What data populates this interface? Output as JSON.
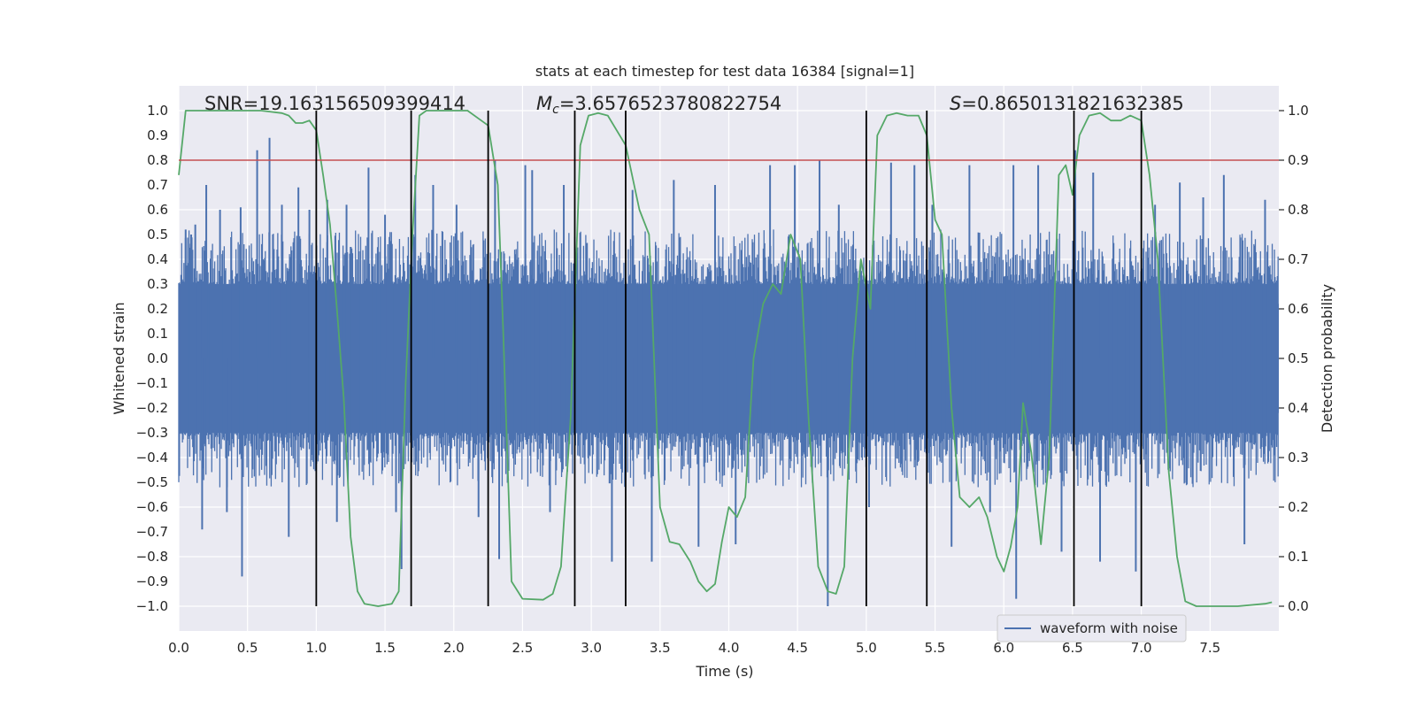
{
  "chart_data": {
    "type": "line",
    "title": "stats at each timestep for test data 16384 [signal=1]",
    "xlabel": "Time (s)",
    "ylabel_left": "Whitened strain",
    "ylabel_right": "Detection probability",
    "xlim": [
      0.0,
      8.0
    ],
    "ylim_left": [
      -1.1,
      1.1
    ],
    "ylim_right": [
      -0.05,
      1.05
    ],
    "x_ticks": [
      "0.0",
      "0.5",
      "1.0",
      "1.5",
      "2.0",
      "2.5",
      "3.0",
      "3.5",
      "4.0",
      "4.5",
      "5.0",
      "5.5",
      "6.0",
      "6.5",
      "7.0",
      "7.5"
    ],
    "y_ticks_left": [
      "1.0",
      "0.9",
      "0.8",
      "0.7",
      "0.6",
      "0.5",
      "0.4",
      "0.3",
      "0.2",
      "0.1",
      "0.0",
      "-0.1",
      "-0.2",
      "-0.3",
      "-0.4",
      "-0.5",
      "-0.6",
      "-0.7",
      "-0.8",
      "-0.9",
      "-1.0"
    ],
    "y_ticks_right": [
      "1.0",
      "0.9",
      "0.8",
      "0.7",
      "0.6",
      "0.5",
      "0.4",
      "0.3",
      "0.2",
      "0.1",
      "0.0"
    ],
    "annotations": {
      "snr": "SNR=19.163156509399414",
      "mc_symbol": "M",
      "mc_sub": "c",
      "mc_value": "=3.6576523780822754",
      "s_symbol": "S",
      "s_value": "=0.8650131821632385"
    },
    "threshold": 0.9,
    "vertical_lines": [
      1.0,
      1.69,
      2.25,
      2.88,
      3.25,
      5.0,
      5.44,
      6.51,
      7.0
    ],
    "waveform": {
      "name": "waveform with noise",
      "noise_band": [
        -0.4,
        0.4
      ],
      "peaks": [
        {
          "x": 0.05,
          "y": 0.52
        },
        {
          "x": 0.09,
          "y": 0.5
        },
        {
          "x": 0.12,
          "y": 0.54
        },
        {
          "x": 0.17,
          "y": -0.69
        },
        {
          "x": 0.2,
          "y": 0.7
        },
        {
          "x": 0.3,
          "y": 0.6
        },
        {
          "x": 0.35,
          "y": -0.62
        },
        {
          "x": 0.45,
          "y": 0.61
        },
        {
          "x": 0.46,
          "y": -0.88
        },
        {
          "x": 0.57,
          "y": 0.84
        },
        {
          "x": 0.66,
          "y": 0.89
        },
        {
          "x": 0.75,
          "y": 0.62
        },
        {
          "x": 0.8,
          "y": -0.72
        },
        {
          "x": 0.87,
          "y": 0.69
        },
        {
          "x": 0.95,
          "y": 0.6
        },
        {
          "x": 1.08,
          "y": 0.64
        },
        {
          "x": 1.15,
          "y": -0.66
        },
        {
          "x": 1.22,
          "y": 0.62
        },
        {
          "x": 1.38,
          "y": 0.77
        },
        {
          "x": 1.5,
          "y": 0.58
        },
        {
          "x": 1.58,
          "y": -0.62
        },
        {
          "x": 1.62,
          "y": -0.85
        },
        {
          "x": 1.72,
          "y": 0.74
        },
        {
          "x": 1.85,
          "y": 0.7
        },
        {
          "x": 2.02,
          "y": 0.62
        },
        {
          "x": 2.18,
          "y": -0.64
        },
        {
          "x": 2.3,
          "y": 0.8
        },
        {
          "x": 2.33,
          "y": -0.81
        },
        {
          "x": 2.52,
          "y": 0.78
        },
        {
          "x": 2.57,
          "y": 0.76
        },
        {
          "x": 2.7,
          "y": -0.62
        },
        {
          "x": 2.8,
          "y": 0.7
        },
        {
          "x": 3.15,
          "y": -0.82
        },
        {
          "x": 3.3,
          "y": 0.68
        },
        {
          "x": 3.44,
          "y": -0.82
        },
        {
          "x": 3.6,
          "y": 0.72
        },
        {
          "x": 3.78,
          "y": -0.76
        },
        {
          "x": 3.9,
          "y": 0.7
        },
        {
          "x": 4.05,
          "y": -0.75
        },
        {
          "x": 4.3,
          "y": 0.78
        },
        {
          "x": 4.48,
          "y": 0.78
        },
        {
          "x": 4.66,
          "y": 0.8
        },
        {
          "x": 4.72,
          "y": -1.0
        },
        {
          "x": 4.8,
          "y": 0.62
        },
        {
          "x": 5.02,
          "y": -0.6
        },
        {
          "x": 5.18,
          "y": 0.79
        },
        {
          "x": 5.35,
          "y": 0.78
        },
        {
          "x": 5.48,
          "y": 0.62
        },
        {
          "x": 5.62,
          "y": -0.76
        },
        {
          "x": 5.75,
          "y": 0.78
        },
        {
          "x": 5.9,
          "y": -0.62
        },
        {
          "x": 6.07,
          "y": 0.78
        },
        {
          "x": 6.09,
          "y": -0.97
        },
        {
          "x": 6.25,
          "y": 0.78
        },
        {
          "x": 6.42,
          "y": -0.78
        },
        {
          "x": 6.52,
          "y": 0.84
        },
        {
          "x": 6.65,
          "y": 0.75
        },
        {
          "x": 6.7,
          "y": -0.82
        },
        {
          "x": 6.96,
          "y": -0.86
        },
        {
          "x": 7.1,
          "y": 0.62
        },
        {
          "x": 7.28,
          "y": 0.71
        },
        {
          "x": 7.45,
          "y": 0.65
        },
        {
          "x": 7.6,
          "y": 0.74
        },
        {
          "x": 7.75,
          "y": -0.75
        },
        {
          "x": 7.9,
          "y": 0.64
        }
      ]
    },
    "probability": {
      "name": "detection probability",
      "points": [
        [
          0.0,
          0.87
        ],
        [
          0.05,
          1.0
        ],
        [
          0.1,
          1.0
        ],
        [
          0.2,
          1.0
        ],
        [
          0.4,
          1.0
        ],
        [
          0.6,
          1.0
        ],
        [
          0.75,
          0.995
        ],
        [
          0.8,
          0.99
        ],
        [
          0.85,
          0.975
        ],
        [
          0.9,
          0.975
        ],
        [
          0.95,
          0.98
        ],
        [
          1.0,
          0.96
        ],
        [
          1.05,
          0.87
        ],
        [
          1.1,
          0.77
        ],
        [
          1.15,
          0.6
        ],
        [
          1.2,
          0.42
        ],
        [
          1.25,
          0.14
        ],
        [
          1.3,
          0.03
        ],
        [
          1.35,
          0.005
        ],
        [
          1.45,
          0.0
        ],
        [
          1.55,
          0.005
        ],
        [
          1.6,
          0.03
        ],
        [
          1.65,
          0.45
        ],
        [
          1.7,
          0.75
        ],
        [
          1.75,
          0.99
        ],
        [
          1.8,
          1.0
        ],
        [
          1.9,
          1.0
        ],
        [
          2.1,
          1.0
        ],
        [
          2.2,
          0.98
        ],
        [
          2.25,
          0.97
        ],
        [
          2.32,
          0.85
        ],
        [
          2.36,
          0.55
        ],
        [
          2.42,
          0.05
        ],
        [
          2.5,
          0.015
        ],
        [
          2.65,
          0.013
        ],
        [
          2.72,
          0.025
        ],
        [
          2.78,
          0.08
        ],
        [
          2.85,
          0.38
        ],
        [
          2.92,
          0.93
        ],
        [
          2.98,
          0.99
        ],
        [
          3.05,
          0.995
        ],
        [
          3.12,
          0.99
        ],
        [
          3.25,
          0.93
        ],
        [
          3.35,
          0.8
        ],
        [
          3.42,
          0.75
        ],
        [
          3.5,
          0.2
        ],
        [
          3.57,
          0.13
        ],
        [
          3.64,
          0.125
        ],
        [
          3.72,
          0.09
        ],
        [
          3.78,
          0.05
        ],
        [
          3.84,
          0.03
        ],
        [
          3.9,
          0.045
        ],
        [
          3.95,
          0.13
        ],
        [
          4.0,
          0.2
        ],
        [
          4.06,
          0.18
        ],
        [
          4.12,
          0.22
        ],
        [
          4.18,
          0.5
        ],
        [
          4.25,
          0.61
        ],
        [
          4.32,
          0.65
        ],
        [
          4.38,
          0.63
        ],
        [
          4.45,
          0.75
        ],
        [
          4.52,
          0.7
        ],
        [
          4.58,
          0.38
        ],
        [
          4.65,
          0.08
        ],
        [
          4.72,
          0.03
        ],
        [
          4.78,
          0.025
        ],
        [
          4.84,
          0.08
        ],
        [
          4.9,
          0.5
        ],
        [
          4.96,
          0.7
        ],
        [
          5.03,
          0.6
        ],
        [
          5.08,
          0.95
        ],
        [
          5.15,
          0.99
        ],
        [
          5.22,
          0.995
        ],
        [
          5.3,
          0.99
        ],
        [
          5.38,
          0.99
        ],
        [
          5.44,
          0.95
        ],
        [
          5.5,
          0.78
        ],
        [
          5.55,
          0.75
        ],
        [
          5.62,
          0.4
        ],
        [
          5.68,
          0.22
        ],
        [
          5.75,
          0.2
        ],
        [
          5.82,
          0.22
        ],
        [
          5.88,
          0.18
        ],
        [
          5.95,
          0.1
        ],
        [
          6.0,
          0.07
        ],
        [
          6.05,
          0.12
        ],
        [
          6.1,
          0.2
        ],
        [
          6.14,
          0.41
        ],
        [
          6.2,
          0.31
        ],
        [
          6.27,
          0.125
        ],
        [
          6.33,
          0.3
        ],
        [
          6.4,
          0.87
        ],
        [
          6.45,
          0.89
        ],
        [
          6.5,
          0.83
        ],
        [
          6.55,
          0.95
        ],
        [
          6.62,
          0.99
        ],
        [
          6.7,
          0.995
        ],
        [
          6.78,
          0.98
        ],
        [
          6.85,
          0.98
        ],
        [
          6.92,
          0.99
        ],
        [
          7.0,
          0.98
        ],
        [
          7.06,
          0.87
        ],
        [
          7.12,
          0.7
        ],
        [
          7.2,
          0.27
        ],
        [
          7.26,
          0.1
        ],
        [
          7.32,
          0.01
        ],
        [
          7.4,
          0.0
        ],
        [
          7.7,
          0.0
        ],
        [
          7.9,
          0.005
        ],
        [
          7.95,
          0.008
        ]
      ]
    },
    "legend": {
      "label": "waveform with noise",
      "position": "lower-right"
    },
    "colors": {
      "waveform": "#4c72b0",
      "probability": "#55a868",
      "threshold": "#c44e52",
      "vlines": "#000000",
      "plot_bg": "#eaeaf2",
      "grid": "#ffffff"
    }
  }
}
